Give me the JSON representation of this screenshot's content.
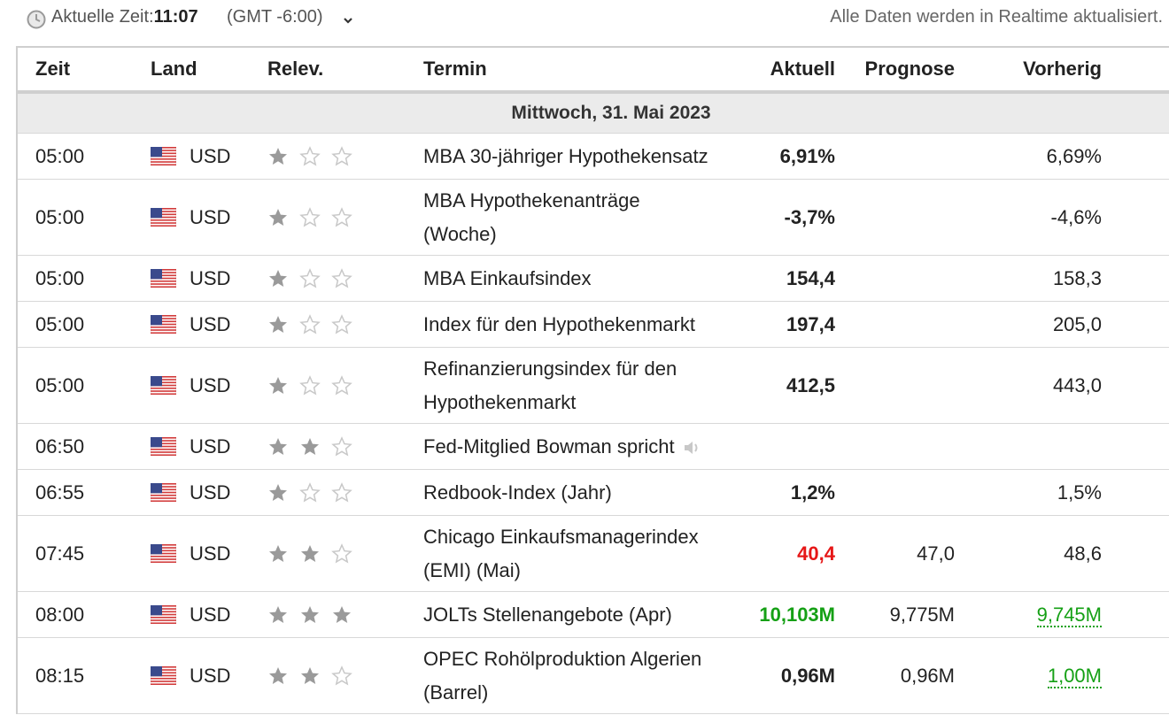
{
  "header": {
    "time_label": "Aktuelle Zeit:",
    "time_value": "11:07",
    "timezone": "(GMT -6:00)",
    "realtime_note": "Alle Daten werden in Realtime aktualisiert."
  },
  "columns": {
    "time": "Zeit",
    "land": "Land",
    "relevance": "Relev.",
    "event": "Termin",
    "actual": "Aktuell",
    "forecast": "Prognose",
    "previous": "Vorherig"
  },
  "date_row": "Mittwoch, 31. Mai 2023",
  "colors": {
    "negative": "#e61717",
    "positive": "#15a015",
    "star_filled": "#9a9a9a",
    "star_empty": "#c8c8c8"
  },
  "rows": [
    {
      "time": "05:00",
      "currency": "USD",
      "stars": 1,
      "event_l1": "MBA 30-jähriger Hypothekensatz",
      "event_l2": "",
      "actual": "6,91%",
      "forecast": "",
      "previous": "6,69%"
    },
    {
      "time": "05:00",
      "currency": "USD",
      "stars": 1,
      "event_l1": "MBA Hypothekenanträge",
      "event_l2": "(Woche)",
      "actual": "-3,7%",
      "forecast": "",
      "previous": "-4,6%"
    },
    {
      "time": "05:00",
      "currency": "USD",
      "stars": 1,
      "event_l1": "MBA Einkaufsindex",
      "event_l2": "",
      "actual": "154,4",
      "forecast": "",
      "previous": "158,3"
    },
    {
      "time": "05:00",
      "currency": "USD",
      "stars": 1,
      "event_l1": "Index für den Hypothekenmarkt",
      "event_l2": "",
      "actual": "197,4",
      "forecast": "",
      "previous": "205,0"
    },
    {
      "time": "05:00",
      "currency": "USD",
      "stars": 1,
      "event_l1": "Refinanzierungsindex für den",
      "event_l2": "Hypothekenmarkt",
      "actual": "412,5",
      "forecast": "",
      "previous": "443,0"
    },
    {
      "time": "06:50",
      "currency": "USD",
      "stars": 2,
      "event_l1": "Fed-Mitglied Bowman spricht",
      "event_l2": "",
      "actual": "",
      "forecast": "",
      "previous": ""
    },
    {
      "time": "06:55",
      "currency": "USD",
      "stars": 1,
      "event_l1": "Redbook-Index (Jahr)",
      "event_l2": "",
      "actual": "1,2%",
      "forecast": "",
      "previous": "1,5%"
    },
    {
      "time": "07:45",
      "currency": "USD",
      "stars": 2,
      "event_l1": "Chicago Einkaufsmanagerindex",
      "event_l2": "(EMI) (Mai)",
      "actual": "40,4",
      "forecast": "47,0",
      "previous": "48,6"
    },
    {
      "time": "08:00",
      "currency": "USD",
      "stars": 3,
      "event_l1": "JOLTs Stellenangebote (Apr)",
      "event_l2": "",
      "actual": "10,103M",
      "forecast": "9,775M",
      "previous": "9,745M"
    },
    {
      "time": "08:15",
      "currency": "USD",
      "stars": 2,
      "event_l1": "OPEC Rohölproduktion Algerien",
      "event_l2": "(Barrel)",
      "actual": "0,96M",
      "forecast": "0,96M",
      "previous": "1,00M"
    }
  ]
}
